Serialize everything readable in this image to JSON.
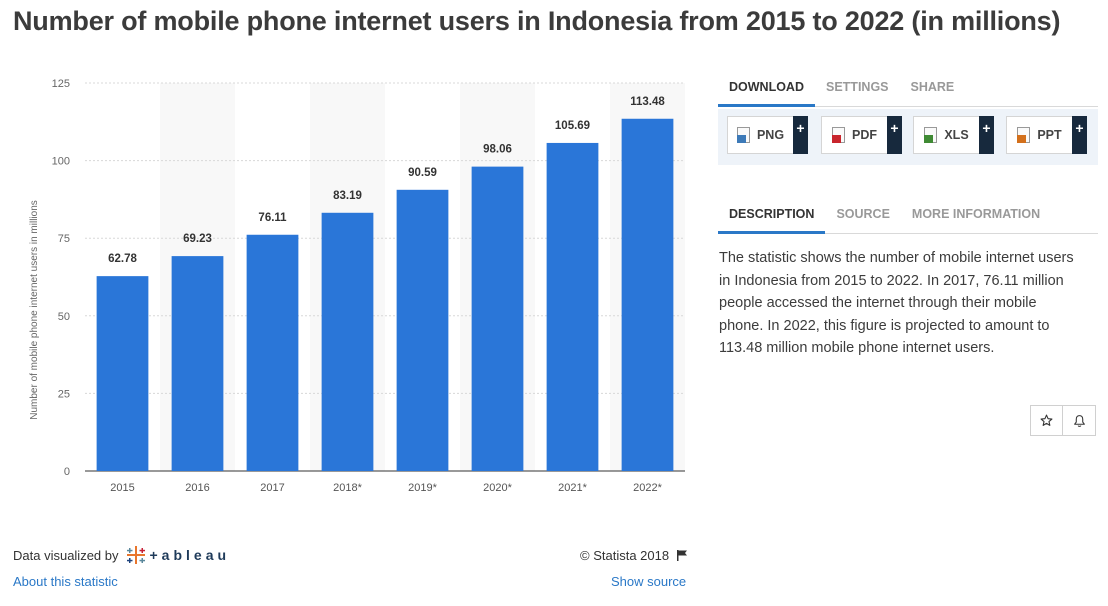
{
  "title": "Number of mobile phone internet users in Indonesia from 2015 to 2022 (in millions)",
  "chart_data": {
    "type": "bar",
    "categories": [
      "2015",
      "2016",
      "2017",
      "2018*",
      "2019*",
      "2020*",
      "2021*",
      "2022*"
    ],
    "values": [
      62.78,
      69.23,
      76.11,
      83.19,
      90.59,
      98.06,
      105.69,
      113.48
    ],
    "value_labels": [
      "62.78",
      "69.23",
      "76.11",
      "83.19",
      "90.59",
      "98.06",
      "105.69",
      "113.48"
    ],
    "xlabel": "",
    "ylabel": "Number of mobile phone internet users in millions",
    "ylim": [
      0,
      125
    ],
    "yticks": [
      "0",
      "25",
      "50",
      "75",
      "100",
      "125"
    ],
    "grid": true,
    "bar_color": "#2a76d8"
  },
  "footer": {
    "visualized_by": "Data visualized by",
    "tableau_word": "+ableau",
    "about": "About this statistic",
    "copyright": "© Statista 2018",
    "show_source": "Show source"
  },
  "download_tabs": [
    "DOWNLOAD",
    "SETTINGS",
    "SHARE"
  ],
  "downloads": [
    {
      "label": "PNG",
      "icon": "png-file-icon",
      "color": "#3d7ab8"
    },
    {
      "label": "PDF",
      "icon": "pdf-file-icon",
      "color": "#c8252c"
    },
    {
      "label": "XLS",
      "icon": "xls-file-icon",
      "color": "#3f8a34"
    },
    {
      "label": "PPT",
      "icon": "ppt-file-icon",
      "color": "#d3701c"
    }
  ],
  "download_plus": "+",
  "info_tabs": [
    "DESCRIPTION",
    "SOURCE",
    "MORE INFORMATION"
  ],
  "description": "The statistic shows the number of mobile internet users in Indonesia from 2015 to 2022. In 2017, 76.11 million people accessed the internet through their mobile phone. In 2022, this figure is projected to amount to 113.48 million mobile phone internet users."
}
